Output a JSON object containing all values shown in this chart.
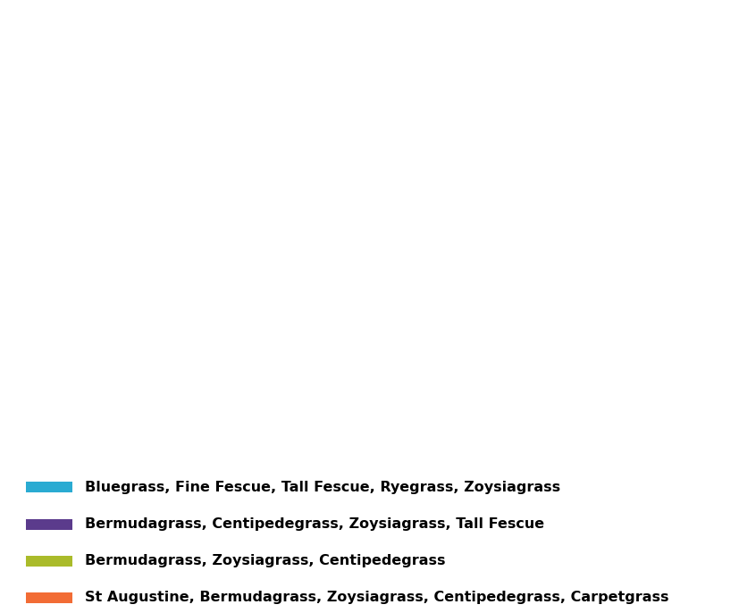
{
  "colors": {
    "bluegrass": "#2AABD2",
    "bermuda_purple": "#5B3B8C",
    "bermuda_green": "#AABB2A",
    "st_augustine": "#F26C35"
  },
  "legend": [
    {
      "color": "#2AABD2",
      "label": "Bluegrass, Fine Fescue, Tall Fescue, Ryegrass, Zoysiagrass"
    },
    {
      "color": "#5B3B8C",
      "label": "Bermudagrass, Centipedegrass, Zoysiagrass, Tall Fescue"
    },
    {
      "color": "#AABB2A",
      "label": "Bermudagrass, Zoysiagrass, Centipedegrass"
    },
    {
      "color": "#F26C35",
      "label": "St Augustine, Bermudagrass, Zoysiagrass, Centipedegrass, Carpetgrass"
    }
  ],
  "state_colors": {
    "New Mexico": "#2AABD2",
    "Colorado": "#2AABD2",
    "Kansas": "#2AABD2",
    "Nebraska": "#2AABD2",
    "South Dakota": "#2AABD2",
    "Missouri": "#5B3B8C",
    "Kentucky": "#5B3B8C",
    "West Virginia": "#5B3B8C",
    "Virginia": "#5B3B8C",
    "Tennessee": "#5B3B8C",
    "Arkansas": "#5B3B8C",
    "Oklahoma": "#5B3B8C",
    "Maryland": "#5B3B8C",
    "Delaware": "#5B3B8C",
    "North Carolina": "#AABB2A",
    "Georgia": "#AABB2A",
    "South Carolina": "#AABB2A",
    "Texas": "#F26C35",
    "Louisiana": "#F26C35",
    "Mississippi": "#F26C35",
    "Alabama": "#F26C35",
    "Florida": "#F26C35"
  },
  "boundary_color": "#FFFFFF",
  "background_color": "#FFFFFF",
  "figsize": [
    8.28,
    6.86
  ],
  "dpi": 100,
  "legend_fontsize": 11.5,
  "map_extent": [
    -110.5,
    -71.5,
    24.0,
    43.5
  ]
}
